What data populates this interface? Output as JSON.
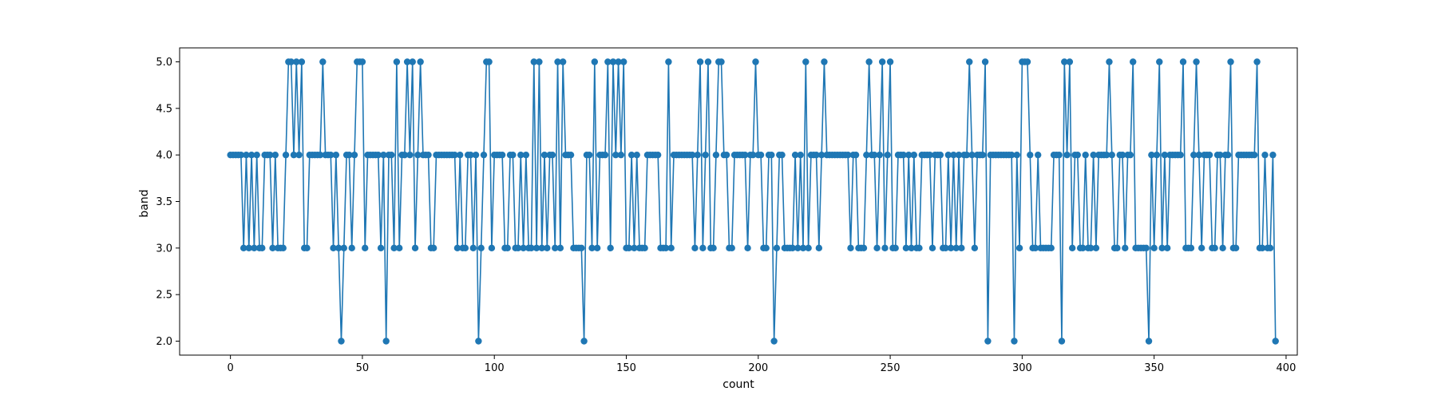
{
  "chart_data": {
    "type": "line",
    "title": "",
    "xlabel": "count",
    "ylabel": "band",
    "xlim": [
      -19.25,
      404.25
    ],
    "ylim": [
      1.85,
      5.15
    ],
    "xticks": [
      0,
      50,
      100,
      150,
      200,
      250,
      300,
      350,
      400
    ],
    "yticks": [
      2.0,
      2.5,
      3.0,
      3.5,
      4.0,
      4.5,
      5.0
    ],
    "grid": false,
    "legend": "none",
    "series": [
      {
        "color": "#1f77b4",
        "marker": "circle",
        "x_start": 0,
        "x_step": 1,
        "values": [
          4,
          4,
          4,
          4,
          4,
          3,
          4,
          3,
          4,
          3,
          4,
          3,
          3,
          4,
          4,
          4,
          3,
          4,
          3,
          3,
          3,
          4,
          5,
          5,
          4,
          5,
          4,
          5,
          3,
          3,
          4,
          4,
          4,
          4,
          4,
          5,
          4,
          4,
          4,
          3,
          4,
          3,
          2,
          3,
          4,
          4,
          3,
          4,
          5,
          5,
          5,
          3,
          4,
          4,
          4,
          4,
          4,
          3,
          4,
          2,
          4,
          4,
          3,
          5,
          3,
          4,
          4,
          5,
          4,
          5,
          3,
          4,
          5,
          4,
          4,
          4,
          3,
          3,
          4,
          4,
          4,
          4,
          4,
          4,
          4,
          4,
          3,
          4,
          3,
          3,
          4,
          4,
          3,
          4,
          2,
          3,
          4,
          5,
          5,
          3,
          4,
          4,
          4,
          4,
          3,
          3,
          4,
          4,
          3,
          3,
          4,
          3,
          4,
          3,
          3,
          5,
          3,
          5,
          3,
          4,
          3,
          4,
          4,
          3,
          5,
          3,
          5,
          4,
          4,
          4,
          3,
          3,
          3,
          3,
          2,
          4,
          4,
          3,
          5,
          3,
          4,
          4,
          4,
          5,
          3,
          5,
          4,
          5,
          4,
          5,
          3,
          3,
          4,
          3,
          4,
          3,
          3,
          3,
          4,
          4,
          4,
          4,
          4,
          3,
          3,
          3,
          5,
          3,
          4,
          4,
          4,
          4,
          4,
          4,
          4,
          4,
          3,
          4,
          5,
          3,
          4,
          5,
          3,
          3,
          4,
          5,
          5,
          4,
          4,
          3,
          3,
          4,
          4,
          4,
          4,
          4,
          3,
          4,
          4,
          5,
          4,
          4,
          3,
          3,
          4,
          4,
          2,
          3,
          4,
          4,
          3,
          3,
          3,
          3,
          4,
          3,
          4,
          3,
          5,
          3,
          4,
          4,
          4,
          3,
          4,
          5,
          4,
          4,
          4,
          4,
          4,
          4,
          4,
          4,
          4,
          3,
          4,
          4,
          3,
          3,
          3,
          4,
          5,
          4,
          4,
          3,
          4,
          5,
          3,
          4,
          5,
          3,
          3,
          4,
          4,
          4,
          3,
          4,
          3,
          4,
          3,
          3,
          4,
          4,
          4,
          4,
          3,
          4,
          4,
          4,
          3,
          3,
          4,
          3,
          4,
          3,
          4,
          3,
          4,
          4,
          5,
          4,
          3,
          4,
          4,
          4,
          5,
          2,
          4,
          4,
          4,
          4,
          4,
          4,
          4,
          4,
          4,
          2,
          4,
          3,
          5,
          5,
          5,
          4,
          3,
          3,
          4,
          3,
          3,
          3,
          3,
          3,
          4,
          4,
          4,
          2,
          5,
          4,
          5,
          3,
          4,
          4,
          3,
          3,
          4,
          3,
          3,
          4,
          3,
          4,
          4,
          4,
          4,
          5,
          4,
          3,
          3,
          4,
          4,
          3,
          4,
          4,
          5,
          3,
          3,
          3,
          3,
          3,
          2,
          4,
          3,
          4,
          5,
          3,
          4,
          3,
          4,
          4,
          4,
          4,
          4,
          5,
          3,
          3,
          3,
          4,
          5,
          4,
          3,
          4,
          4,
          4,
          3,
          3,
          4,
          4,
          3,
          4,
          4,
          5,
          3,
          3,
          4,
          4,
          4,
          4,
          4,
          4,
          4,
          5,
          3,
          3,
          4,
          3,
          3,
          4,
          2
        ]
      }
    ]
  }
}
